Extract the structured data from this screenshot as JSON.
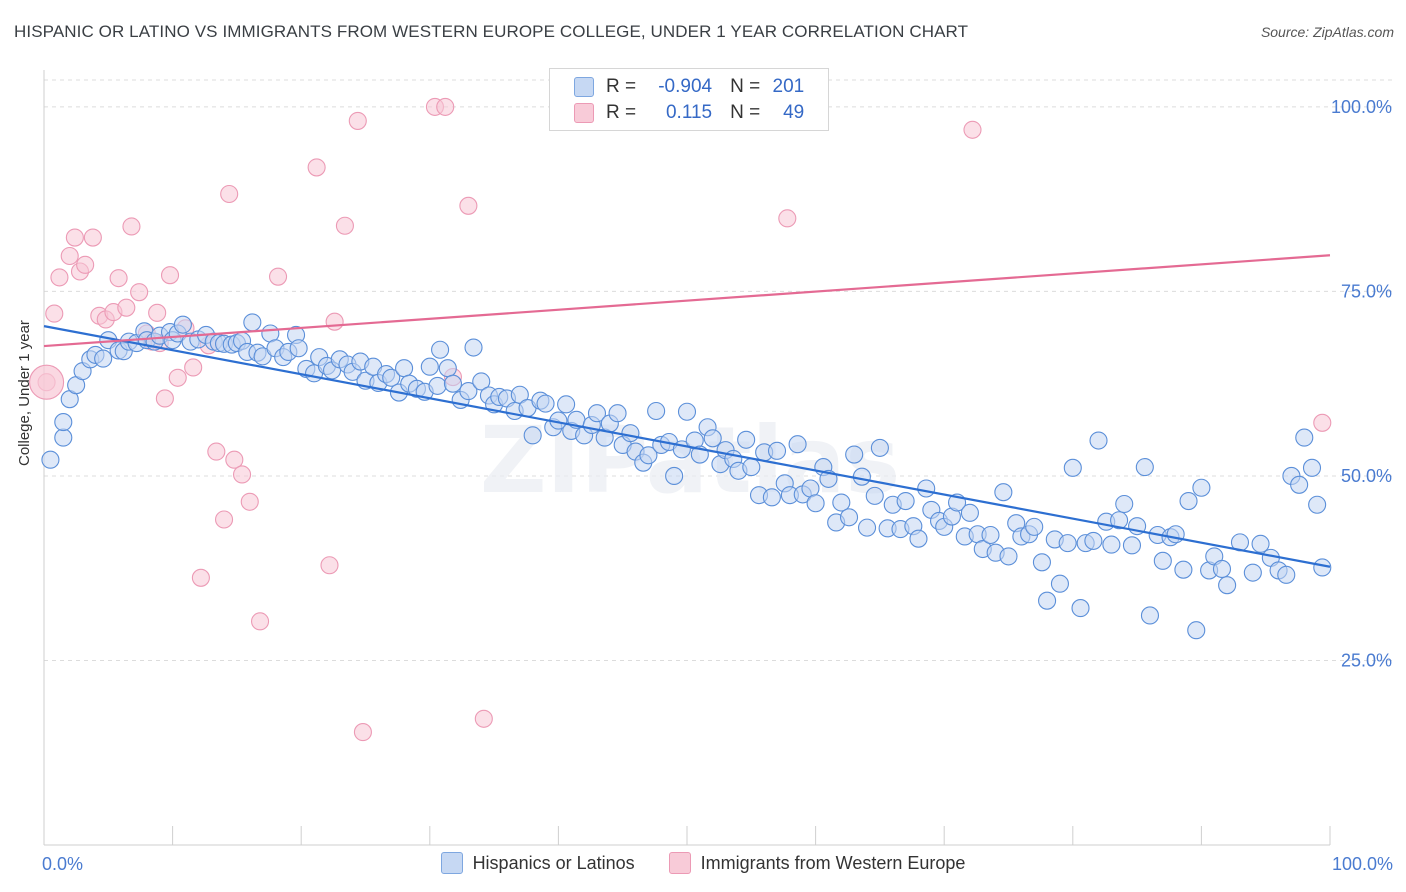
{
  "title": "HISPANIC OR LATINO VS IMMIGRANTS FROM WESTERN EUROPE COLLEGE, UNDER 1 YEAR CORRELATION CHART",
  "source": "Source: ZipAtlas.com",
  "watermark": "ZIPatlas",
  "stats": {
    "rows": [
      {
        "r_label": "R =",
        "r_value": "-0.904",
        "n_label": "N =",
        "n_value": "201",
        "color": "#7ea7e0",
        "fill": "#c6d8f3"
      },
      {
        "r_label": "R =",
        "r_value": "0.115",
        "n_label": "N =",
        "n_value": "49",
        "color": "#ec9ab5",
        "fill": "#f8cbd8"
      }
    ]
  },
  "chart_data": {
    "type": "scatter",
    "title": "HISPANIC OR LATINO VS IMMIGRANTS FROM WESTERN EUROPE COLLEGE, UNDER 1 YEAR CORRELATION CHART",
    "xlabel": "",
    "ylabel": "College, Under 1 year",
    "xlim": [
      0,
      100
    ],
    "ylim": [
      0,
      105
    ],
    "x_tick_labels": [
      "0.0%",
      "100.0%"
    ],
    "y_tick_labels": [
      "25.0%",
      "50.0%",
      "75.0%",
      "100.0%"
    ],
    "y_ticks": [
      25,
      50,
      75,
      100
    ],
    "grid": true,
    "legend_position": "bottom",
    "series": [
      {
        "name": "Hispanics or Latinos",
        "color": "#5b8fd9",
        "line_color": "#2d6fd1",
        "trend": {
          "x": [
            0,
            100
          ],
          "y": [
            70.3,
            37.7
          ]
        },
        "points": [
          [
            0.5,
            52.2
          ],
          [
            1.5,
            55.2
          ],
          [
            1.5,
            57.3
          ],
          [
            2,
            60.4
          ],
          [
            2.5,
            62.3
          ],
          [
            3,
            64.2
          ],
          [
            3.6,
            65.8
          ],
          [
            4,
            66.4
          ],
          [
            4.6,
            65.9
          ],
          [
            5,
            68.4
          ],
          [
            5.8,
            67
          ],
          [
            6.2,
            66.9
          ],
          [
            6.6,
            68.2
          ],
          [
            7.2,
            68
          ],
          [
            7.8,
            69.6
          ],
          [
            8,
            68.4
          ],
          [
            8.6,
            68.2
          ],
          [
            9,
            69
          ],
          [
            9.8,
            69.5
          ],
          [
            10,
            68.4
          ],
          [
            10.4,
            69.3
          ],
          [
            10.8,
            70.5
          ],
          [
            11.4,
            68.2
          ],
          [
            12,
            68.5
          ],
          [
            12.6,
            69.1
          ],
          [
            13.2,
            68.2
          ],
          [
            13.6,
            68
          ],
          [
            14,
            67.9
          ],
          [
            14.6,
            67.8
          ],
          [
            15,
            68
          ],
          [
            15.4,
            68.3
          ],
          [
            15.8,
            66.8
          ],
          [
            16.2,
            70.8
          ],
          [
            16.6,
            66.7
          ],
          [
            17,
            66.2
          ],
          [
            17.6,
            69.3
          ],
          [
            18,
            67.3
          ],
          [
            18.6,
            66.1
          ],
          [
            19,
            66.8
          ],
          [
            19.6,
            69.1
          ],
          [
            19.8,
            67.3
          ],
          [
            20.4,
            64.5
          ],
          [
            21,
            63.9
          ],
          [
            21.4,
            66.1
          ],
          [
            22,
            64.9
          ],
          [
            22.4,
            64.3
          ],
          [
            23,
            65.8
          ],
          [
            23.6,
            65.1
          ],
          [
            24,
            64.1
          ],
          [
            24.6,
            65.5
          ],
          [
            25,
            62.9
          ],
          [
            25.6,
            64.8
          ],
          [
            26,
            62.6
          ],
          [
            26.6,
            63.8
          ],
          [
            27,
            63.3
          ],
          [
            27.6,
            61.3
          ],
          [
            28,
            64.6
          ],
          [
            28.4,
            62.5
          ],
          [
            29,
            61.8
          ],
          [
            29.6,
            61.4
          ],
          [
            30,
            64.8
          ],
          [
            30.6,
            62.2
          ],
          [
            30.8,
            67.1
          ],
          [
            31.4,
            64.6
          ],
          [
            31.8,
            62.5
          ],
          [
            32.4,
            60.3
          ],
          [
            33,
            61.5
          ],
          [
            33.4,
            67.4
          ],
          [
            34,
            62.8
          ],
          [
            34.6,
            60.9
          ],
          [
            35,
            59.7
          ],
          [
            35.4,
            60.7
          ],
          [
            36,
            60.5
          ],
          [
            36.6,
            58.8
          ],
          [
            37,
            61
          ],
          [
            37.6,
            59.2
          ],
          [
            38,
            55.5
          ],
          [
            38.6,
            60.2
          ],
          [
            39,
            59.8
          ],
          [
            39.6,
            56.6
          ],
          [
            40,
            57.5
          ],
          [
            40.6,
            59.7
          ],
          [
            41,
            56.1
          ],
          [
            41.4,
            57.6
          ],
          [
            42,
            55.5
          ],
          [
            42.6,
            56.9
          ],
          [
            43,
            58.5
          ],
          [
            43.6,
            55.2
          ],
          [
            44,
            57.1
          ],
          [
            44.6,
            58.5
          ],
          [
            45,
            54.2
          ],
          [
            45.6,
            55.8
          ],
          [
            46,
            53.3
          ],
          [
            46.6,
            51.8
          ],
          [
            47,
            52.8
          ],
          [
            47.6,
            58.8
          ],
          [
            48,
            54.2
          ],
          [
            48.6,
            54.6
          ],
          [
            49,
            50
          ],
          [
            49.6,
            53.6
          ],
          [
            50,
            58.7
          ],
          [
            50.6,
            54.8
          ],
          [
            51,
            52.9
          ],
          [
            51.6,
            56.6
          ],
          [
            52,
            55.1
          ],
          [
            52.6,
            51.6
          ],
          [
            53,
            53.5
          ],
          [
            53.6,
            52.3
          ],
          [
            54,
            50.7
          ],
          [
            54.6,
            54.9
          ],
          [
            55,
            51.2
          ],
          [
            55.6,
            47.4
          ],
          [
            56,
            53.2
          ],
          [
            56.6,
            47.1
          ],
          [
            57,
            53.4
          ],
          [
            57.6,
            49
          ],
          [
            58,
            47.4
          ],
          [
            58.6,
            54.3
          ],
          [
            59,
            47.5
          ],
          [
            59.6,
            48.3
          ],
          [
            60,
            46.3
          ],
          [
            60.6,
            51.2
          ],
          [
            61,
            49.6
          ],
          [
            61.6,
            43.7
          ],
          [
            62,
            46.4
          ],
          [
            62.6,
            44.4
          ],
          [
            63,
            52.9
          ],
          [
            63.6,
            49.9
          ],
          [
            64,
            43
          ],
          [
            64.6,
            47.3
          ],
          [
            65,
            53.8
          ],
          [
            65.6,
            42.9
          ],
          [
            66,
            46.1
          ],
          [
            66.6,
            42.8
          ],
          [
            67,
            46.6
          ],
          [
            67.6,
            43.2
          ],
          [
            68,
            41.5
          ],
          [
            68.6,
            48.3
          ],
          [
            69,
            45.4
          ],
          [
            69.6,
            43.9
          ],
          [
            70,
            43.1
          ],
          [
            70.6,
            44.5
          ],
          [
            71,
            46.4
          ],
          [
            71.6,
            41.8
          ],
          [
            72,
            45
          ],
          [
            72.6,
            42.1
          ],
          [
            73,
            40.1
          ],
          [
            73.6,
            42
          ],
          [
            74,
            39.6
          ],
          [
            74.6,
            47.8
          ],
          [
            75,
            39.1
          ],
          [
            75.6,
            43.6
          ],
          [
            76,
            41.8
          ],
          [
            76.6,
            42.1
          ],
          [
            77,
            43.1
          ],
          [
            77.6,
            38.3
          ],
          [
            78,
            33.1
          ],
          [
            78.6,
            41.4
          ],
          [
            79,
            35.4
          ],
          [
            79.6,
            40.9
          ],
          [
            80,
            51.1
          ],
          [
            80.6,
            32.1
          ],
          [
            81,
            40.9
          ],
          [
            81.6,
            41.2
          ],
          [
            82,
            54.8
          ],
          [
            82.6,
            43.8
          ],
          [
            83,
            40.7
          ],
          [
            83.6,
            44
          ],
          [
            84,
            46.2
          ],
          [
            84.6,
            40.6
          ],
          [
            85,
            43.2
          ],
          [
            85.6,
            51.2
          ],
          [
            86,
            31.1
          ],
          [
            86.6,
            42
          ],
          [
            87,
            38.5
          ],
          [
            87.6,
            41.7
          ],
          [
            88,
            42.1
          ],
          [
            88.6,
            37.3
          ],
          [
            89,
            46.6
          ],
          [
            89.6,
            29.1
          ],
          [
            90,
            48.4
          ],
          [
            90.6,
            37.2
          ],
          [
            91,
            39.1
          ],
          [
            91.6,
            37.4
          ],
          [
            92,
            35.2
          ],
          [
            93,
            41
          ],
          [
            94,
            36.9
          ],
          [
            94.6,
            40.8
          ],
          [
            95.4,
            38.9
          ],
          [
            96,
            37.2
          ],
          [
            96.6,
            36.6
          ],
          [
            97,
            50
          ],
          [
            97.6,
            48.8
          ],
          [
            98,
            55.2
          ],
          [
            98.6,
            51.1
          ],
          [
            99,
            46.1
          ],
          [
            99.4,
            37.6
          ]
        ]
      },
      {
        "name": "Immigrants from Western Europe",
        "color": "#ec9ab5",
        "line_color": "#e46a93",
        "trend": {
          "x": [
            0,
            100
          ],
          "y": [
            67.6,
            79.9
          ]
        },
        "points": [
          [
            0.2,
            62.7
          ],
          [
            0.8,
            72
          ],
          [
            1.2,
            76.9
          ],
          [
            2,
            79.8
          ],
          [
            2.4,
            82.3
          ],
          [
            2.8,
            77.7
          ],
          [
            3.2,
            78.6
          ],
          [
            3.8,
            82.3
          ],
          [
            4.3,
            71.7
          ],
          [
            4.8,
            71.2
          ],
          [
            5.4,
            72.2
          ],
          [
            5.8,
            76.8
          ],
          [
            6.4,
            72.8
          ],
          [
            6.8,
            83.8
          ],
          [
            7.4,
            74.9
          ],
          [
            8,
            69.3
          ],
          [
            8.4,
            68.2
          ],
          [
            8.8,
            72.1
          ],
          [
            9.4,
            60.5
          ],
          [
            9.8,
            77.2
          ],
          [
            10.4,
            63.3
          ],
          [
            11,
            70
          ],
          [
            11.6,
            64.7
          ],
          [
            12.2,
            36.2
          ],
          [
            12.8,
            67.7
          ],
          [
            13.4,
            53.3
          ],
          [
            14,
            44.1
          ],
          [
            14.4,
            88.2
          ],
          [
            14.8,
            52.2
          ],
          [
            15.4,
            50.2
          ],
          [
            16,
            46.5
          ],
          [
            16.8,
            30.3
          ],
          [
            18.2,
            77
          ],
          [
            21.2,
            91.8
          ],
          [
            22.2,
            37.9
          ],
          [
            22.6,
            70.9
          ],
          [
            23.4,
            83.9
          ],
          [
            24.4,
            98.1
          ],
          [
            24.8,
            15.3
          ],
          [
            30.4,
            100
          ],
          [
            31.2,
            100
          ],
          [
            31.8,
            63.4
          ],
          [
            33,
            86.6
          ],
          [
            34.2,
            17.1
          ],
          [
            47,
            100
          ],
          [
            57.8,
            84.9
          ],
          [
            72.2,
            96.9
          ],
          [
            99.4,
            57.2
          ],
          [
            9,
            68
          ]
        ]
      }
    ]
  },
  "legend": {
    "items": [
      {
        "label": "Hispanics or Latinos"
      },
      {
        "label": "Immigrants from Western Europe"
      }
    ]
  }
}
